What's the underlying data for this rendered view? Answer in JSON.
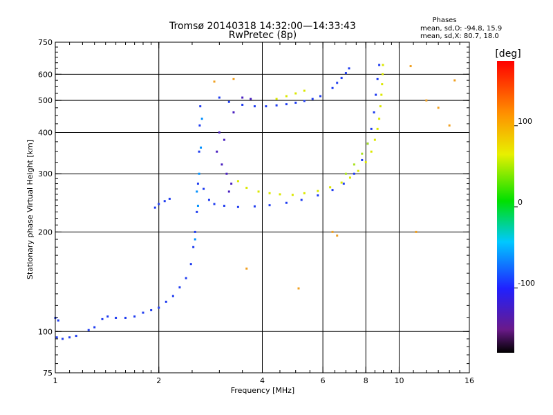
{
  "chart_data": {
    "type": "scatter",
    "title": "Tromsø 20140318 14:32:00—14:33:43",
    "subtitle": "RwPretec (8p)",
    "xlabel": "Frequency [MHz]",
    "ylabel": "Stationary phase Virtual Height [km]",
    "x_scale": "log",
    "y_scale": "log",
    "xlim": [
      1,
      16
    ],
    "ylim": [
      75,
      750
    ],
    "x_ticks": [
      1,
      2,
      4,
      6,
      8,
      10,
      16
    ],
    "y_ticks": [
      75,
      100,
      200,
      300,
      400,
      500,
      600,
      750
    ],
    "x_gridlines": [
      2,
      4,
      6,
      8,
      10
    ],
    "y_gridlines": [
      100,
      200,
      300,
      400,
      500,
      600
    ],
    "grid": true,
    "stats": {
      "title": "Phases",
      "line_o": "mean, sd,O: -94.8, 15.9",
      "line_x": "mean, sd,X: 80.7, 18.0"
    },
    "colorbar": {
      "label": "[deg]",
      "range": [
        -180,
        180
      ],
      "ticks": [
        100,
        0,
        -100
      ],
      "colormap": "rainbow: black(-180) purple blue cyan green yellow orange red(180)"
    },
    "series": [
      {
        "phase_deg": -95,
        "color": "#1f3cf0",
        "points": [
          [
            1.0,
            110
          ],
          [
            1.02,
            108
          ],
          [
            1.01,
            96
          ],
          [
            1.05,
            95
          ],
          [
            1.1,
            96
          ],
          [
            1.15,
            97
          ],
          [
            1.25,
            101
          ],
          [
            1.3,
            103
          ],
          [
            1.37,
            109
          ],
          [
            1.42,
            111
          ],
          [
            1.5,
            110
          ],
          [
            1.6,
            110
          ],
          [
            1.7,
            111
          ],
          [
            1.8,
            114
          ],
          [
            1.9,
            116
          ],
          [
            2.0,
            118
          ],
          [
            2.1,
            123
          ],
          [
            2.2,
            128
          ],
          [
            2.3,
            136
          ],
          [
            2.4,
            145
          ],
          [
            2.48,
            160
          ],
          [
            2.52,
            180
          ],
          [
            2.55,
            200
          ],
          [
            2.58,
            230
          ],
          [
            2.6,
            280
          ],
          [
            2.62,
            350
          ],
          [
            2.63,
            420
          ],
          [
            2.64,
            480
          ],
          [
            1.95,
            237
          ],
          [
            2.0,
            243
          ],
          [
            2.08,
            248
          ],
          [
            2.15,
            252
          ],
          [
            2.7,
            270
          ],
          [
            2.8,
            250
          ],
          [
            2.9,
            243
          ],
          [
            3.1,
            240
          ],
          [
            3.4,
            238
          ],
          [
            3.8,
            239
          ],
          [
            4.2,
            241
          ],
          [
            4.7,
            245
          ],
          [
            5.2,
            250
          ],
          [
            5.8,
            258
          ],
          [
            6.4,
            268
          ],
          [
            6.9,
            280
          ],
          [
            7.4,
            300
          ],
          [
            7.8,
            330
          ],
          [
            8.1,
            370
          ],
          [
            8.3,
            410
          ],
          [
            8.45,
            460
          ],
          [
            8.55,
            520
          ],
          [
            8.65,
            580
          ],
          [
            8.75,
            640
          ],
          [
            3.0,
            510
          ],
          [
            3.2,
            495
          ],
          [
            3.5,
            485
          ],
          [
            3.8,
            480
          ],
          [
            4.1,
            480
          ],
          [
            4.4,
            483
          ],
          [
            4.7,
            487
          ],
          [
            5.0,
            492
          ],
          [
            5.3,
            498
          ],
          [
            5.6,
            505
          ],
          [
            5.9,
            515
          ],
          [
            6.4,
            545
          ],
          [
            6.6,
            565
          ],
          [
            6.8,
            585
          ],
          [
            7.0,
            605
          ],
          [
            7.15,
            625
          ]
        ]
      },
      {
        "phase_deg": -110,
        "color": "#4a20c0",
        "points": [
          [
            2.95,
            350
          ],
          [
            3.05,
            320
          ],
          [
            3.15,
            300
          ],
          [
            3.25,
            280
          ],
          [
            3.0,
            400
          ],
          [
            3.1,
            380
          ],
          [
            3.3,
            460
          ],
          [
            3.5,
            510
          ],
          [
            3.7,
            505
          ],
          [
            3.2,
            265
          ]
        ]
      },
      {
        "phase_deg": -70,
        "color": "#0090ff",
        "points": [
          [
            2.55,
            190
          ],
          [
            2.6,
            240
          ],
          [
            2.62,
            300
          ],
          [
            2.65,
            360
          ],
          [
            2.67,
            440
          ],
          [
            2.58,
            265
          ]
        ]
      },
      {
        "phase_deg": 85,
        "color": "#dbe800",
        "points": [
          [
            3.4,
            285
          ],
          [
            3.6,
            272
          ],
          [
            3.9,
            265
          ],
          [
            4.2,
            262
          ],
          [
            4.5,
            260
          ],
          [
            4.9,
            259
          ],
          [
            5.3,
            262
          ],
          [
            5.8,
            266
          ],
          [
            6.3,
            273
          ],
          [
            6.8,
            282
          ],
          [
            7.2,
            292
          ],
          [
            7.6,
            306
          ],
          [
            8.0,
            325
          ],
          [
            8.3,
            350
          ],
          [
            8.5,
            380
          ],
          [
            8.65,
            410
          ],
          [
            8.75,
            440
          ],
          [
            8.82,
            480
          ],
          [
            8.88,
            520
          ],
          [
            8.92,
            560
          ],
          [
            8.95,
            600
          ],
          [
            8.97,
            640
          ],
          [
            4.4,
            505
          ],
          [
            4.7,
            515
          ],
          [
            5.0,
            525
          ],
          [
            5.3,
            535
          ]
        ]
      },
      {
        "phase_deg": 60,
        "color": "#a8e21e",
        "points": [
          [
            7.0,
            300
          ],
          [
            7.4,
            320
          ],
          [
            7.8,
            345
          ],
          [
            8.1,
            370
          ]
        ]
      },
      {
        "phase_deg": 130,
        "color": "#f0a020",
        "points": [
          [
            2.9,
            570
          ],
          [
            3.3,
            580
          ],
          [
            3.6,
            155
          ],
          [
            5.1,
            135
          ],
          [
            6.4,
            200
          ],
          [
            6.6,
            195
          ],
          [
            10.8,
            635
          ],
          [
            12.0,
            500
          ],
          [
            13.0,
            475
          ],
          [
            14.0,
            420
          ],
          [
            14.5,
            575
          ],
          [
            11.2,
            200
          ]
        ]
      }
    ]
  }
}
